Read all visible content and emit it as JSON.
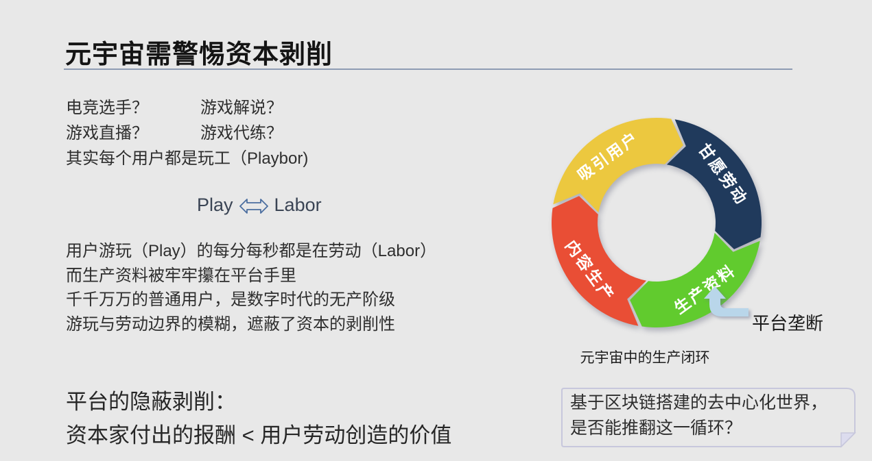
{
  "title": "元宇宙需警惕资本剥削",
  "intro": {
    "q1": "电竞选手？",
    "q2": "游戏解说？",
    "q3": "游戏直播？",
    "q4": "游戏代练？",
    "line3": "其实每个用户都是玩工（Playbor)"
  },
  "equation": {
    "left": "Play",
    "right": "Labor"
  },
  "paragraph": {
    "lines": [
      "用户游玩（Play）的每分每秒都是在劳动（Labor）",
      "而生产资料被牢牢攥在平台手里",
      "千千万万的普通用户，是数字时代的无产阶级",
      "游玩与劳动边界的模糊，遮蔽了资本的剥削性"
    ]
  },
  "conclusion": {
    "line1": "平台的隐蔽剥削：",
    "line2": "资本家付出的报酬 < 用户劳动创造的价值"
  },
  "diagram": {
    "type": "cycle-diagram",
    "caption": "元宇宙中的生产闭环",
    "annotation": "平台垄断",
    "segments": [
      {
        "label": "吸引用户",
        "color": "#ecc83f"
      },
      {
        "label": "甘愿劳动",
        "color": "#203a5c"
      },
      {
        "label": "生产资料",
        "color": "#61cb2e"
      },
      {
        "label": "内容生产",
        "color": "#e94e35"
      }
    ],
    "arrow_color": "#b9d6ea"
  },
  "callout": {
    "line1": "基于区块链搭建的去中心化世界，",
    "line2": "是否能推翻这一循环？"
  },
  "colors": {
    "background": "#e8e8e8",
    "title_rule": "#8d9bb3",
    "equation_arrow_stroke": "#4a6d9f",
    "callout_border": "#c7c7dc",
    "callout_fold": "#dcdcee"
  }
}
